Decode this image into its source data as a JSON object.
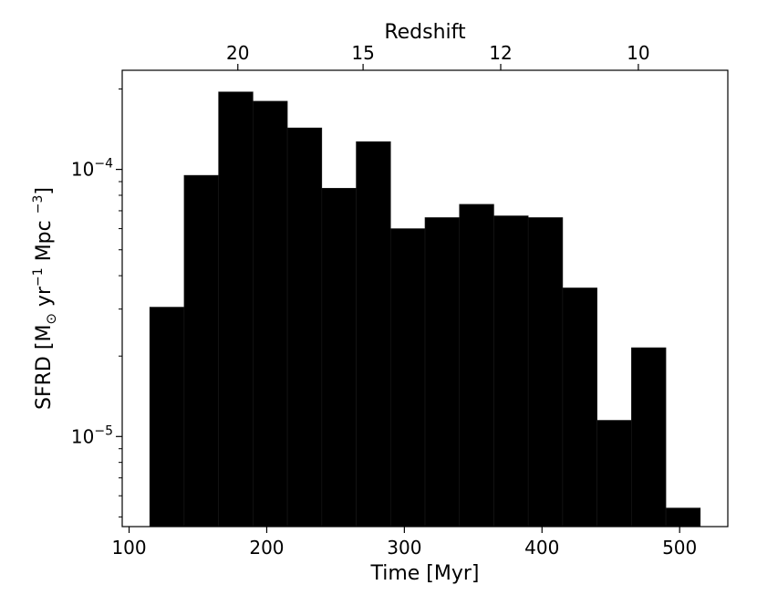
{
  "chart_data": {
    "type": "bar",
    "bar_style": "histogram",
    "bar_color": "#000000",
    "xlabel": "Time [Myr]",
    "ylabel": "SFRD  [M",
    "ylabel_sub": "⊙",
    "ylabel_mid": " yr",
    "ylabel_exp1": "−1",
    "ylabel_mid2": " Mpc ",
    "ylabel_exp2": "−3",
    "ylabel_close": "]",
    "top_xlabel": "Redshift",
    "xlim": [
      95,
      535
    ],
    "ylim": [
      4.6e-06,
      0.000235
    ],
    "yscale": "log",
    "bin_edges": [
      115,
      140,
      165,
      190,
      215,
      240,
      265,
      290,
      315,
      340,
      365,
      390,
      415,
      440,
      465,
      490,
      515
    ],
    "values": [
      3.05e-05,
      9.5e-05,
      0.000195,
      0.00018,
      0.000143,
      8.5e-05,
      0.000127,
      6e-05,
      6.6e-05,
      7.4e-05,
      6.7e-05,
      6.6e-05,
      3.6e-05,
      1.15e-05,
      2.15e-05,
      5.4e-06
    ],
    "x_ticks": [
      {
        "value": 100,
        "label": "100"
      },
      {
        "value": 200,
        "label": "200"
      },
      {
        "value": 300,
        "label": "300"
      },
      {
        "value": 400,
        "label": "400"
      },
      {
        "value": 500,
        "label": "500"
      }
    ],
    "y_ticks": [
      {
        "value": 0.0001,
        "base": "10",
        "exp": "−4"
      },
      {
        "value": 1e-05,
        "base": "10",
        "exp": "−5"
      }
    ],
    "top_ticks": [
      {
        "time": 179,
        "label": "20"
      },
      {
        "time": 270,
        "label": "15"
      },
      {
        "time": 370,
        "label": "12"
      },
      {
        "time": 470,
        "label": "10"
      }
    ]
  }
}
